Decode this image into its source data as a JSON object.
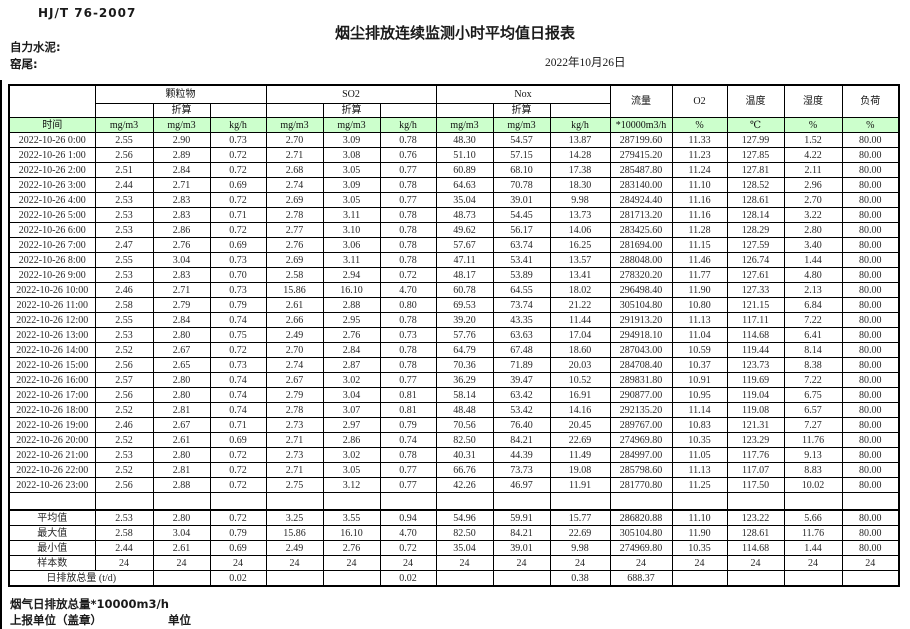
{
  "page": {
    "standard": "HJ/T 76-2007",
    "title": "烟尘排放连续监测小时平均值日报表",
    "company": "自力水泥:",
    "stack": "窑尾:",
    "date": "2022年10月26日"
  },
  "colors": {
    "unit_row_green": "#ccffcc",
    "border": "#000000"
  },
  "table": {
    "groups": {
      "pm": "颗粒物",
      "so2": "SO2",
      "nox": "Nox"
    },
    "converted_label": "折算",
    "col_headers": {
      "time": "时间",
      "flow": "流量",
      "o2": "O2",
      "temp": "温度",
      "humidity": "湿度",
      "load": "负荷"
    },
    "units": [
      "mg/m3",
      "mg/m3",
      "kg/h",
      "mg/m3",
      "mg/m3",
      "kg/h",
      "mg/m3",
      "mg/m3",
      "kg/h",
      "*10000m3/h",
      "%",
      "℃",
      "%",
      "%"
    ],
    "rows": [
      {
        "time": "2022-10-26 0:00",
        "values": [
          "2.55",
          "2.90",
          "0.73",
          "2.70",
          "3.09",
          "0.78",
          "48.30",
          "54.57",
          "13.87",
          "287199.60",
          "11.33",
          "127.99",
          "1.52",
          "80.00"
        ]
      },
      {
        "time": "2022-10-26 1:00",
        "values": [
          "2.56",
          "2.89",
          "0.72",
          "2.71",
          "3.08",
          "0.76",
          "51.10",
          "57.15",
          "14.28",
          "279415.20",
          "11.23",
          "127.85",
          "4.22",
          "80.00"
        ]
      },
      {
        "time": "2022-10-26 2:00",
        "values": [
          "2.51",
          "2.84",
          "0.72",
          "2.68",
          "3.05",
          "0.77",
          "60.89",
          "68.10",
          "17.38",
          "285487.80",
          "11.24",
          "127.81",
          "2.11",
          "80.00"
        ]
      },
      {
        "time": "2022-10-26 3:00",
        "values": [
          "2.44",
          "2.71",
          "0.69",
          "2.74",
          "3.09",
          "0.78",
          "64.63",
          "70.78",
          "18.30",
          "283140.00",
          "11.10",
          "128.52",
          "2.96",
          "80.00"
        ]
      },
      {
        "time": "2022-10-26 4:00",
        "values": [
          "2.53",
          "2.83",
          "0.72",
          "2.69",
          "3.05",
          "0.77",
          "35.04",
          "39.01",
          "9.98",
          "284924.40",
          "11.16",
          "128.61",
          "2.70",
          "80.00"
        ]
      },
      {
        "time": "2022-10-26 5:00",
        "values": [
          "2.53",
          "2.83",
          "0.71",
          "2.78",
          "3.11",
          "0.78",
          "48.73",
          "54.45",
          "13.73",
          "281713.20",
          "11.16",
          "128.14",
          "3.22",
          "80.00"
        ]
      },
      {
        "time": "2022-10-26 6:00",
        "values": [
          "2.53",
          "2.86",
          "0.72",
          "2.77",
          "3.10",
          "0.78",
          "49.62",
          "56.17",
          "14.06",
          "283425.60",
          "11.28",
          "128.29",
          "2.80",
          "80.00"
        ]
      },
      {
        "time": "2022-10-26 7:00",
        "values": [
          "2.47",
          "2.76",
          "0.69",
          "2.76",
          "3.06",
          "0.78",
          "57.67",
          "63.74",
          "16.25",
          "281694.00",
          "11.15",
          "127.59",
          "3.40",
          "80.00"
        ]
      },
      {
        "time": "2022-10-26 8:00",
        "values": [
          "2.55",
          "3.04",
          "0.73",
          "2.69",
          "3.11",
          "0.78",
          "47.11",
          "53.41",
          "13.57",
          "288048.00",
          "11.46",
          "126.74",
          "1.44",
          "80.00"
        ]
      },
      {
        "time": "2022-10-26 9:00",
        "values": [
          "2.53",
          "2.83",
          "0.70",
          "2.58",
          "2.94",
          "0.72",
          "48.17",
          "53.89",
          "13.41",
          "278320.20",
          "11.77",
          "127.61",
          "4.80",
          "80.00"
        ]
      },
      {
        "time": "2022-10-26 10:00",
        "values": [
          "2.46",
          "2.71",
          "0.73",
          "15.86",
          "16.10",
          "4.70",
          "60.78",
          "64.55",
          "18.02",
          "296498.40",
          "11.90",
          "127.33",
          "2.13",
          "80.00"
        ]
      },
      {
        "time": "2022-10-26 11:00",
        "values": [
          "2.58",
          "2.79",
          "0.79",
          "2.61",
          "2.88",
          "0.80",
          "69.53",
          "73.74",
          "21.22",
          "305104.80",
          "10.80",
          "121.15",
          "6.84",
          "80.00"
        ]
      },
      {
        "time": "2022-10-26 12:00",
        "values": [
          "2.55",
          "2.84",
          "0.74",
          "2.66",
          "2.95",
          "0.78",
          "39.20",
          "43.35",
          "11.44",
          "291913.20",
          "11.13",
          "117.11",
          "7.22",
          "80.00"
        ]
      },
      {
        "time": "2022-10-26 13:00",
        "values": [
          "2.53",
          "2.80",
          "0.75",
          "2.49",
          "2.76",
          "0.73",
          "57.76",
          "63.63",
          "17.04",
          "294918.10",
          "11.04",
          "114.68",
          "6.41",
          "80.00"
        ]
      },
      {
        "time": "2022-10-26 14:00",
        "values": [
          "2.52",
          "2.67",
          "0.72",
          "2.70",
          "2.84",
          "0.78",
          "64.79",
          "67.48",
          "18.60",
          "287043.00",
          "10.59",
          "119.44",
          "8.14",
          "80.00"
        ]
      },
      {
        "time": "2022-10-26 15:00",
        "values": [
          "2.56",
          "2.65",
          "0.73",
          "2.74",
          "2.87",
          "0.78",
          "70.36",
          "71.89",
          "20.03",
          "284708.40",
          "10.37",
          "123.73",
          "8.38",
          "80.00"
        ]
      },
      {
        "time": "2022-10-26 16:00",
        "values": [
          "2.57",
          "2.80",
          "0.74",
          "2.67",
          "3.02",
          "0.77",
          "36.29",
          "39.47",
          "10.52",
          "289831.80",
          "10.91",
          "119.69",
          "7.22",
          "80.00"
        ]
      },
      {
        "time": "2022-10-26 17:00",
        "values": [
          "2.56",
          "2.80",
          "0.74",
          "2.79",
          "3.04",
          "0.81",
          "58.14",
          "63.42",
          "16.91",
          "290877.00",
          "10.95",
          "119.04",
          "6.75",
          "80.00"
        ]
      },
      {
        "time": "2022-10-26 18:00",
        "values": [
          "2.52",
          "2.81",
          "0.74",
          "2.78",
          "3.07",
          "0.81",
          "48.48",
          "53.42",
          "14.16",
          "292135.20",
          "11.14",
          "119.08",
          "6.57",
          "80.00"
        ]
      },
      {
        "time": "2022-10-26 19:00",
        "values": [
          "2.46",
          "2.67",
          "0.71",
          "2.73",
          "2.97",
          "0.79",
          "70.56",
          "76.40",
          "20.45",
          "289767.00",
          "10.83",
          "121.31",
          "7.27",
          "80.00"
        ]
      },
      {
        "time": "2022-10-26 20:00",
        "values": [
          "2.52",
          "2.61",
          "0.69",
          "2.71",
          "2.86",
          "0.74",
          "82.50",
          "84.21",
          "22.69",
          "274969.80",
          "10.35",
          "123.29",
          "11.76",
          "80.00"
        ]
      },
      {
        "time": "2022-10-26 21:00",
        "values": [
          "2.53",
          "2.80",
          "0.72",
          "2.73",
          "3.02",
          "0.78",
          "40.31",
          "44.39",
          "11.49",
          "284997.00",
          "11.05",
          "117.76",
          "9.13",
          "80.00"
        ]
      },
      {
        "time": "2022-10-26 22:00",
        "values": [
          "2.52",
          "2.81",
          "0.72",
          "2.71",
          "3.05",
          "0.77",
          "66.76",
          "73.73",
          "19.08",
          "285798.60",
          "11.13",
          "117.07",
          "8.83",
          "80.00"
        ]
      },
      {
        "time": "2022-10-26 23:00",
        "values": [
          "2.56",
          "2.88",
          "0.72",
          "2.75",
          "3.12",
          "0.77",
          "42.26",
          "46.97",
          "11.91",
          "281770.80",
          "11.25",
          "117.50",
          "10.02",
          "80.00"
        ]
      }
    ],
    "summary": [
      {
        "label": "平均值",
        "values": [
          "2.53",
          "2.80",
          "0.72",
          "3.25",
          "3.55",
          "0.94",
          "54.96",
          "59.91",
          "15.77",
          "286820.88",
          "11.10",
          "123.22",
          "5.66",
          "80.00"
        ]
      },
      {
        "label": "最大值",
        "values": [
          "2.58",
          "3.04",
          "0.79",
          "15.86",
          "16.10",
          "4.70",
          "82.50",
          "84.21",
          "22.69",
          "305104.80",
          "11.90",
          "128.61",
          "11.76",
          "80.00"
        ]
      },
      {
        "label": "最小值",
        "values": [
          "2.44",
          "2.61",
          "0.69",
          "2.49",
          "2.76",
          "0.72",
          "35.04",
          "39.01",
          "9.98",
          "274969.80",
          "10.35",
          "114.68",
          "1.44",
          "80.00"
        ]
      },
      {
        "label": "样本数",
        "values": [
          "24",
          "24",
          "24",
          "24",
          "24",
          "24",
          "24",
          "24",
          "24",
          "24",
          "24",
          "24",
          "24",
          "24"
        ]
      }
    ],
    "daily_total": {
      "label": "日排放总量 (t/d)",
      "values": [
        "",
        "0.02",
        "",
        "",
        "0.02",
        "",
        "",
        "0.38",
        "688.37",
        "",
        "",
        "",
        ""
      ]
    }
  },
  "footer": {
    "flue_total": "烟气日排放总量*10000m3/h",
    "report_unit": "上报单位（盖章）",
    "unit": "单位"
  }
}
